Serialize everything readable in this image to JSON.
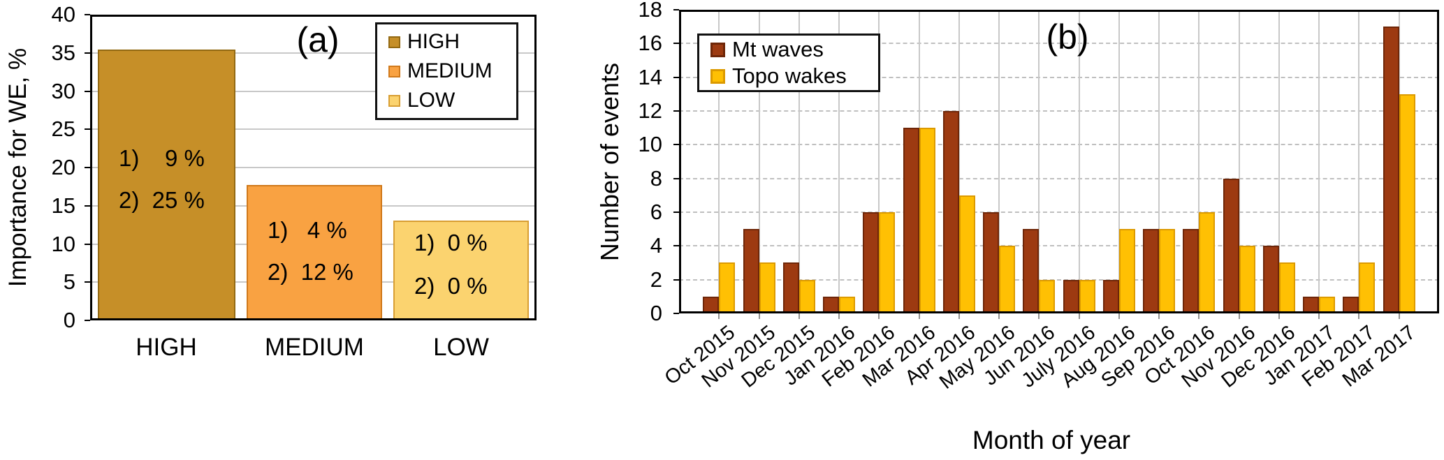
{
  "panel_a": {
    "panel_label": "(a)",
    "y_axis": {
      "title": "Importance for WE, %",
      "tick_labels": [
        "0",
        "5",
        "10",
        "15",
        "20",
        "25",
        "30",
        "35",
        "40"
      ],
      "min": 0,
      "max": 40,
      "step": 5
    },
    "x_axis": {
      "tick_labels": [
        "HIGH",
        "MEDIUM",
        "LOW"
      ]
    },
    "legend": {
      "items": [
        "HIGH",
        "MEDIUM",
        "LOW"
      ],
      "position": "top-right"
    },
    "colors": {
      "fills": [
        "#C68F28",
        "#F9A242",
        "#FBD36F"
      ],
      "borders": [
        "#936912",
        "#D0791B",
        "#D89E33"
      ]
    }
  },
  "panel_b": {
    "panel_label": "(b)",
    "y_axis": {
      "title": "Number of events",
      "tick_labels": [
        "0",
        "2",
        "4",
        "6",
        "8",
        "10",
        "12",
        "14",
        "16",
        "18"
      ],
      "min": 0,
      "max": 18,
      "step": 2
    },
    "x_axis": {
      "title": "Month of year"
    },
    "legend": {
      "items": [
        "Mt waves",
        "Topo wakes"
      ],
      "position": "top-left"
    },
    "colors": {
      "fills": [
        "#9D3A11",
        "#FFC003"
      ],
      "borders": [
        "#6E2608",
        "#DC9A00"
      ]
    }
  },
  "chart_data": [
    {
      "type": "bar",
      "panel": "(a)",
      "title": "",
      "xlabel": "",
      "ylabel": "Importance for WE, %",
      "ylim": [
        0,
        40
      ],
      "ytick_step": 5,
      "grid": "horizontal",
      "legend_position": "top-right",
      "categories": [
        "HIGH",
        "MEDIUM",
        "LOW"
      ],
      "values": [
        35.4,
        17.7,
        13.1
      ],
      "bar_annotations": [
        [
          "1)    9 %",
          "2)  25 %"
        ],
        [
          "1)   4 %",
          "2)  12 %"
        ],
        [
          "1)  0 %",
          "2)  0 %"
        ]
      ]
    },
    {
      "type": "bar",
      "panel": "(b)",
      "title": "",
      "xlabel": "Month of year",
      "ylabel": "Number of events",
      "ylim": [
        0,
        18
      ],
      "ytick_step": 2,
      "grid": "both",
      "legend_position": "top-left",
      "categories": [
        "Oct 2015",
        "Nov 2015",
        "Dec 2015",
        "Jan 2016",
        "Feb 2016",
        "Mar 2016",
        "Apr 2016",
        "May 2016",
        "Jun 2016",
        "July 2016",
        "Aug 2016",
        "Sep 2016",
        "Oct 2016",
        "Nov 2016",
        "Dec 2016",
        "Jan 2017",
        "Feb 2017",
        "Mar 2017"
      ],
      "series": [
        {
          "name": "Mt waves",
          "values": [
            1,
            5,
            3,
            1,
            6,
            11,
            12,
            6,
            5,
            2,
            2,
            5,
            5,
            8,
            4,
            1,
            1,
            17
          ]
        },
        {
          "name": "Topo wakes",
          "values": [
            3,
            3,
            2,
            1,
            6,
            11,
            7,
            4,
            2,
            2,
            5,
            5,
            6,
            4,
            3,
            1,
            3,
            13
          ]
        }
      ]
    }
  ]
}
